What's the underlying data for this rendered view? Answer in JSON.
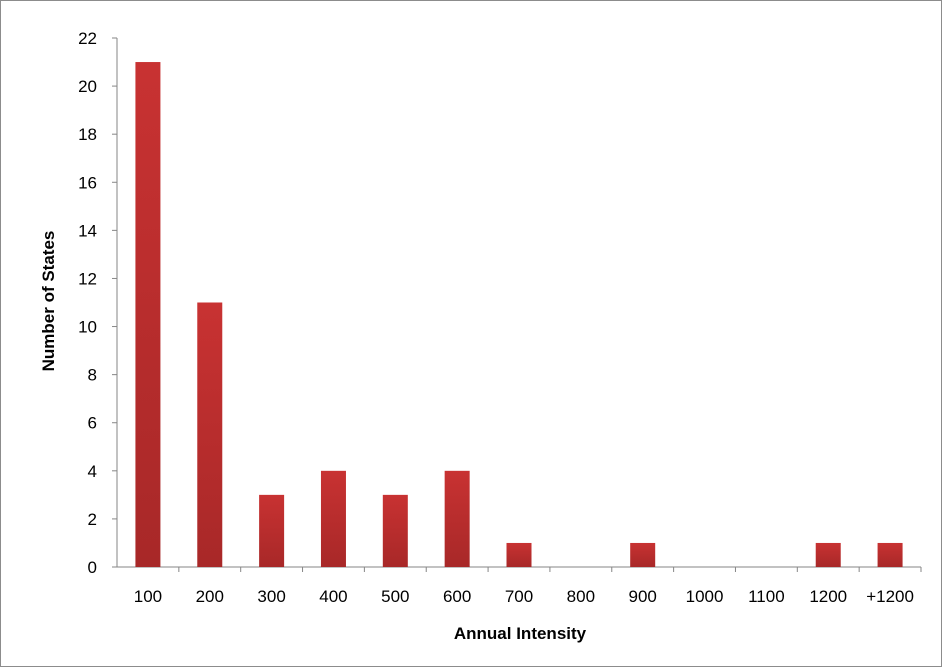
{
  "chart_data": {
    "type": "bar",
    "title": "",
    "xlabel": "Annual Intensity",
    "ylabel": "Number of States",
    "categories": [
      "100",
      "200",
      "300",
      "400",
      "500",
      "600",
      "700",
      "800",
      "900",
      "1000",
      "1100",
      "1200",
      "+1200"
    ],
    "values": [
      21,
      11,
      3,
      4,
      3,
      4,
      1,
      0,
      1,
      0,
      0,
      1,
      1
    ],
    "ylim": [
      0,
      22
    ],
    "yticks": [
      0,
      2,
      4,
      6,
      8,
      10,
      12,
      14,
      16,
      18,
      20,
      22
    ],
    "grid": false,
    "legend": "none",
    "bar_color": "#c83232",
    "bar_color_dark": "#a82828"
  }
}
